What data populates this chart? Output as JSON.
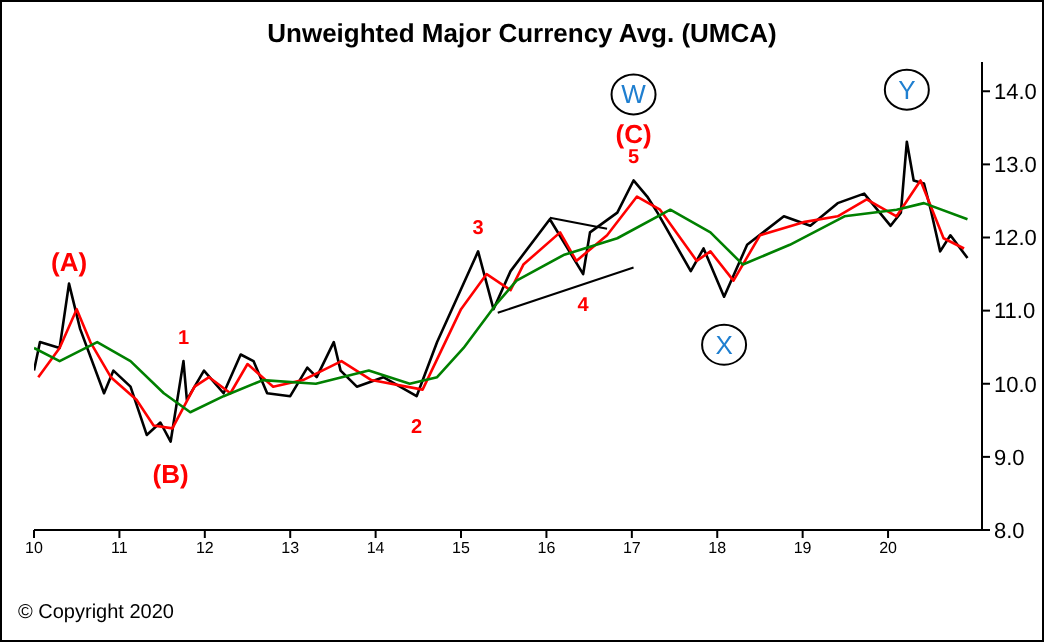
{
  "chart_data": {
    "type": "line",
    "title": "Unweighted Major Currency Avg. (UMCA)",
    "series": [
      {
        "color": "#000000",
        "x": [
          10.0,
          10.07,
          10.3,
          10.41,
          10.54,
          10.82,
          10.93,
          11.13,
          11.32,
          11.48,
          11.6,
          11.75,
          11.79,
          11.99,
          12.22,
          12.42,
          12.57,
          12.73,
          13.0,
          13.2,
          13.31,
          13.51,
          13.59,
          13.78,
          14.09,
          14.48,
          14.72,
          15.03,
          15.2,
          15.38,
          15.58,
          16.04,
          16.43,
          16.51,
          16.83,
          17.02,
          17.18,
          17.3,
          17.69,
          17.84,
          18.08,
          18.35,
          18.78,
          19.09,
          19.41,
          19.72,
          20.03,
          20.15,
          20.22,
          20.3,
          20.42,
          20.5,
          20.61,
          20.73,
          20.93
        ],
        "values": [
          10.18,
          10.57,
          10.49,
          11.37,
          10.75,
          9.87,
          10.18,
          9.96,
          9.3,
          9.47,
          9.21,
          10.31,
          9.78,
          10.18,
          9.87,
          10.4,
          10.31,
          9.87,
          9.83,
          10.22,
          10.09,
          10.57,
          10.18,
          9.96,
          10.09,
          9.83,
          10.57,
          11.37,
          11.81,
          11.02,
          11.54,
          12.25,
          11.5,
          12.07,
          12.34,
          12.78,
          12.56,
          12.34,
          11.54,
          11.85,
          11.19,
          11.9,
          12.29,
          12.16,
          12.47,
          12.6,
          12.16,
          12.34,
          13.31,
          12.78,
          12.74,
          12.38,
          11.81,
          12.03,
          11.72
        ]
      },
      {
        "color": "#ff0000",
        "x": [
          10.05,
          10.3,
          10.5,
          10.66,
          10.9,
          11.2,
          11.4,
          11.62,
          11.88,
          12.05,
          12.3,
          12.5,
          12.8,
          13.15,
          13.6,
          13.95,
          14.55,
          15.0,
          15.3,
          15.58,
          15.73,
          16.16,
          16.35,
          16.71,
          17.06,
          17.33,
          17.76,
          17.92,
          18.19,
          18.5,
          19.01,
          19.41,
          19.75,
          20.1,
          20.38,
          20.65,
          20.89
        ],
        "values": [
          10.09,
          10.49,
          11.02,
          10.57,
          10.09,
          9.78,
          9.43,
          9.39,
          9.96,
          10.09,
          9.87,
          10.27,
          9.96,
          10.05,
          10.31,
          10.05,
          9.92,
          11.02,
          11.5,
          11.28,
          11.63,
          12.07,
          11.68,
          12.03,
          12.56,
          12.38,
          11.68,
          11.81,
          11.41,
          12.03,
          12.21,
          12.29,
          12.52,
          12.29,
          12.78,
          11.99,
          11.85
        ]
      },
      {
        "color": "#008000",
        "x": [
          10.0,
          10.3,
          10.74,
          11.13,
          11.52,
          11.83,
          12.22,
          12.68,
          13.3,
          13.92,
          14.4,
          14.72,
          15.03,
          15.42,
          15.65,
          16.2,
          16.83,
          17.45,
          17.92,
          18.3,
          18.85,
          19.49,
          20.1,
          20.42,
          20.93
        ],
        "values": [
          10.49,
          10.31,
          10.57,
          10.31,
          9.87,
          9.61,
          9.83,
          10.05,
          10.0,
          10.18,
          10.0,
          10.09,
          10.49,
          11.1,
          11.41,
          11.76,
          11.99,
          12.38,
          12.07,
          11.63,
          11.9,
          12.29,
          12.38,
          12.47,
          12.25
        ]
      },
      {
        "color": "#000000",
        "x": [
          15.43,
          17.02
        ],
        "values": [
          10.97,
          11.59
        ]
      },
      {
        "color": "#000000",
        "x": [
          16.04,
          16.71
        ],
        "values": [
          12.27,
          12.12
        ]
      }
    ],
    "xlim": [
      10,
      21.1
    ],
    "xticks": [
      10,
      11,
      12,
      13,
      14,
      15,
      16,
      17,
      18,
      19,
      20
    ],
    "ylim": [
      8,
      14.4
    ],
    "yticks": [
      {
        "value": 8,
        "label": "8.0"
      },
      {
        "value": 9,
        "label": "9.0"
      },
      {
        "value": 10,
        "label": "10.0"
      },
      {
        "value": 11,
        "label": "11.0"
      },
      {
        "value": 12,
        "label": "12.0"
      },
      {
        "value": 13,
        "label": "13.0"
      },
      {
        "value": 14,
        "label": "14.0"
      }
    ],
    "grid": false,
    "legend": false,
    "marker": "none",
    "line_style": "solid",
    "annotations": [
      {
        "text": "(A)",
        "x": 10.41,
        "y": 11.37
      },
      {
        "text": "(B)",
        "x": 11.6,
        "y": 9.21
      },
      {
        "text": "1",
        "x": 11.75,
        "y": 10.31
      },
      {
        "text": "2",
        "x": 14.48,
        "y": 9.83
      },
      {
        "text": "3",
        "x": 15.2,
        "y": 11.81
      },
      {
        "text": "4",
        "x": 16.43,
        "y": 11.5
      },
      {
        "text": "5",
        "x": 17.02,
        "y": 12.78
      },
      {
        "text": "(C)",
        "x": 17.02,
        "y": 12.78
      },
      {
        "text": "W",
        "x": 17.02,
        "y": 12.78
      },
      {
        "text": "X",
        "x": 18.08,
        "y": 11.19
      },
      {
        "text": "Y",
        "x": 20.22,
        "y": 13.31
      },
      "© Copyright 2020"
    ]
  }
}
